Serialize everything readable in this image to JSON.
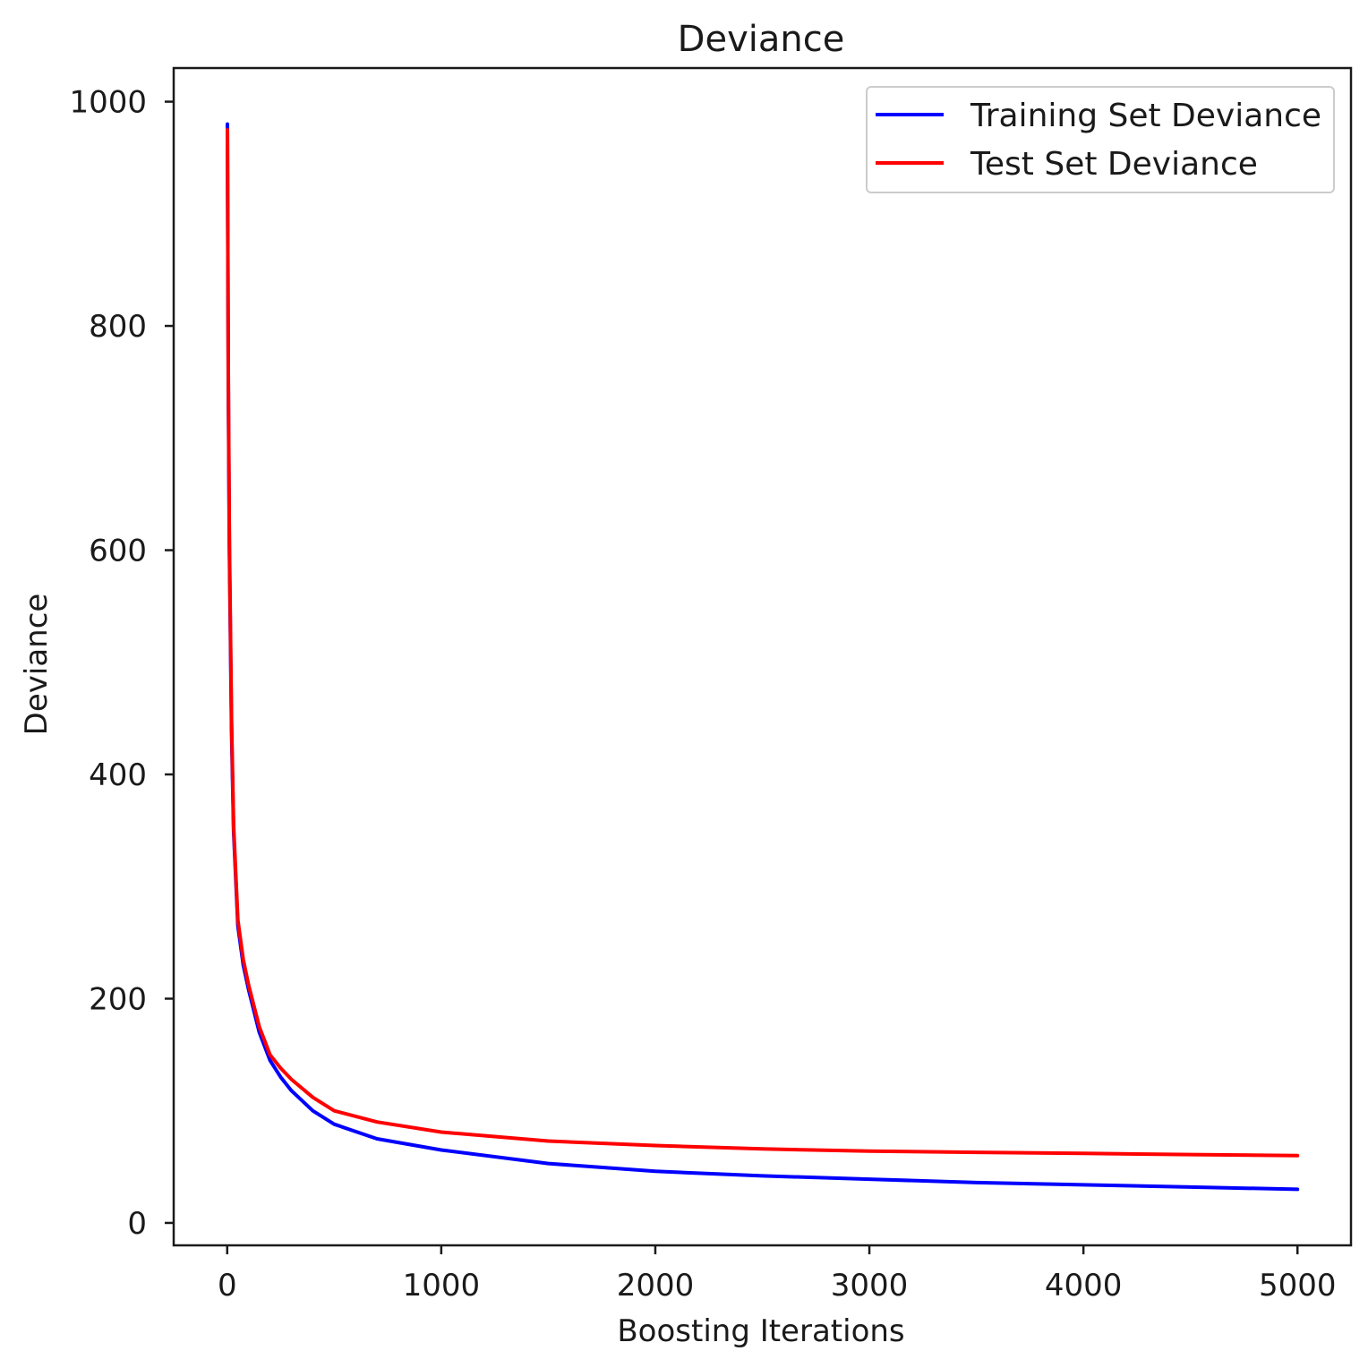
{
  "chart_data": {
    "type": "line",
    "title": "Deviance",
    "xlabel": "Boosting Iterations",
    "ylabel": "Deviance",
    "xlim": [
      -250,
      5250
    ],
    "ylim": [
      -20,
      1030
    ],
    "xticks": [
      0,
      1000,
      2000,
      3000,
      4000,
      5000
    ],
    "xtick_labels": [
      "0",
      "1000",
      "2000",
      "3000",
      "4000",
      "5000"
    ],
    "yticks": [
      0,
      200,
      400,
      600,
      800,
      1000
    ],
    "ytick_labels": [
      "0",
      "200",
      "400",
      "600",
      "800",
      "1000"
    ],
    "grid": false,
    "legend_position": "upper right",
    "series": [
      {
        "name": "Training Set Deviance",
        "color": "#0000ff",
        "x": [
          1,
          5,
          10,
          20,
          30,
          50,
          75,
          100,
          150,
          200,
          250,
          300,
          400,
          500,
          700,
          1000,
          1500,
          2000,
          2500,
          3000,
          3500,
          4000,
          4500,
          5000
        ],
        "y": [
          980,
          750,
          600,
          440,
          350,
          265,
          230,
          208,
          170,
          145,
          130,
          118,
          100,
          88,
          75,
          65,
          53,
          46,
          42,
          39,
          36,
          34,
          32,
          30
        ]
      },
      {
        "name": "Test Set Deviance",
        "color": "#ff0000",
        "x": [
          1,
          5,
          10,
          20,
          30,
          50,
          75,
          100,
          150,
          200,
          250,
          300,
          400,
          500,
          700,
          1000,
          1500,
          2000,
          2500,
          3000,
          3500,
          4000,
          4500,
          5000
        ],
        "y": [
          975,
          760,
          610,
          450,
          355,
          270,
          235,
          212,
          175,
          150,
          138,
          128,
          112,
          100,
          90,
          81,
          73,
          69,
          66,
          64,
          63,
          62,
          61,
          60
        ]
      }
    ]
  }
}
